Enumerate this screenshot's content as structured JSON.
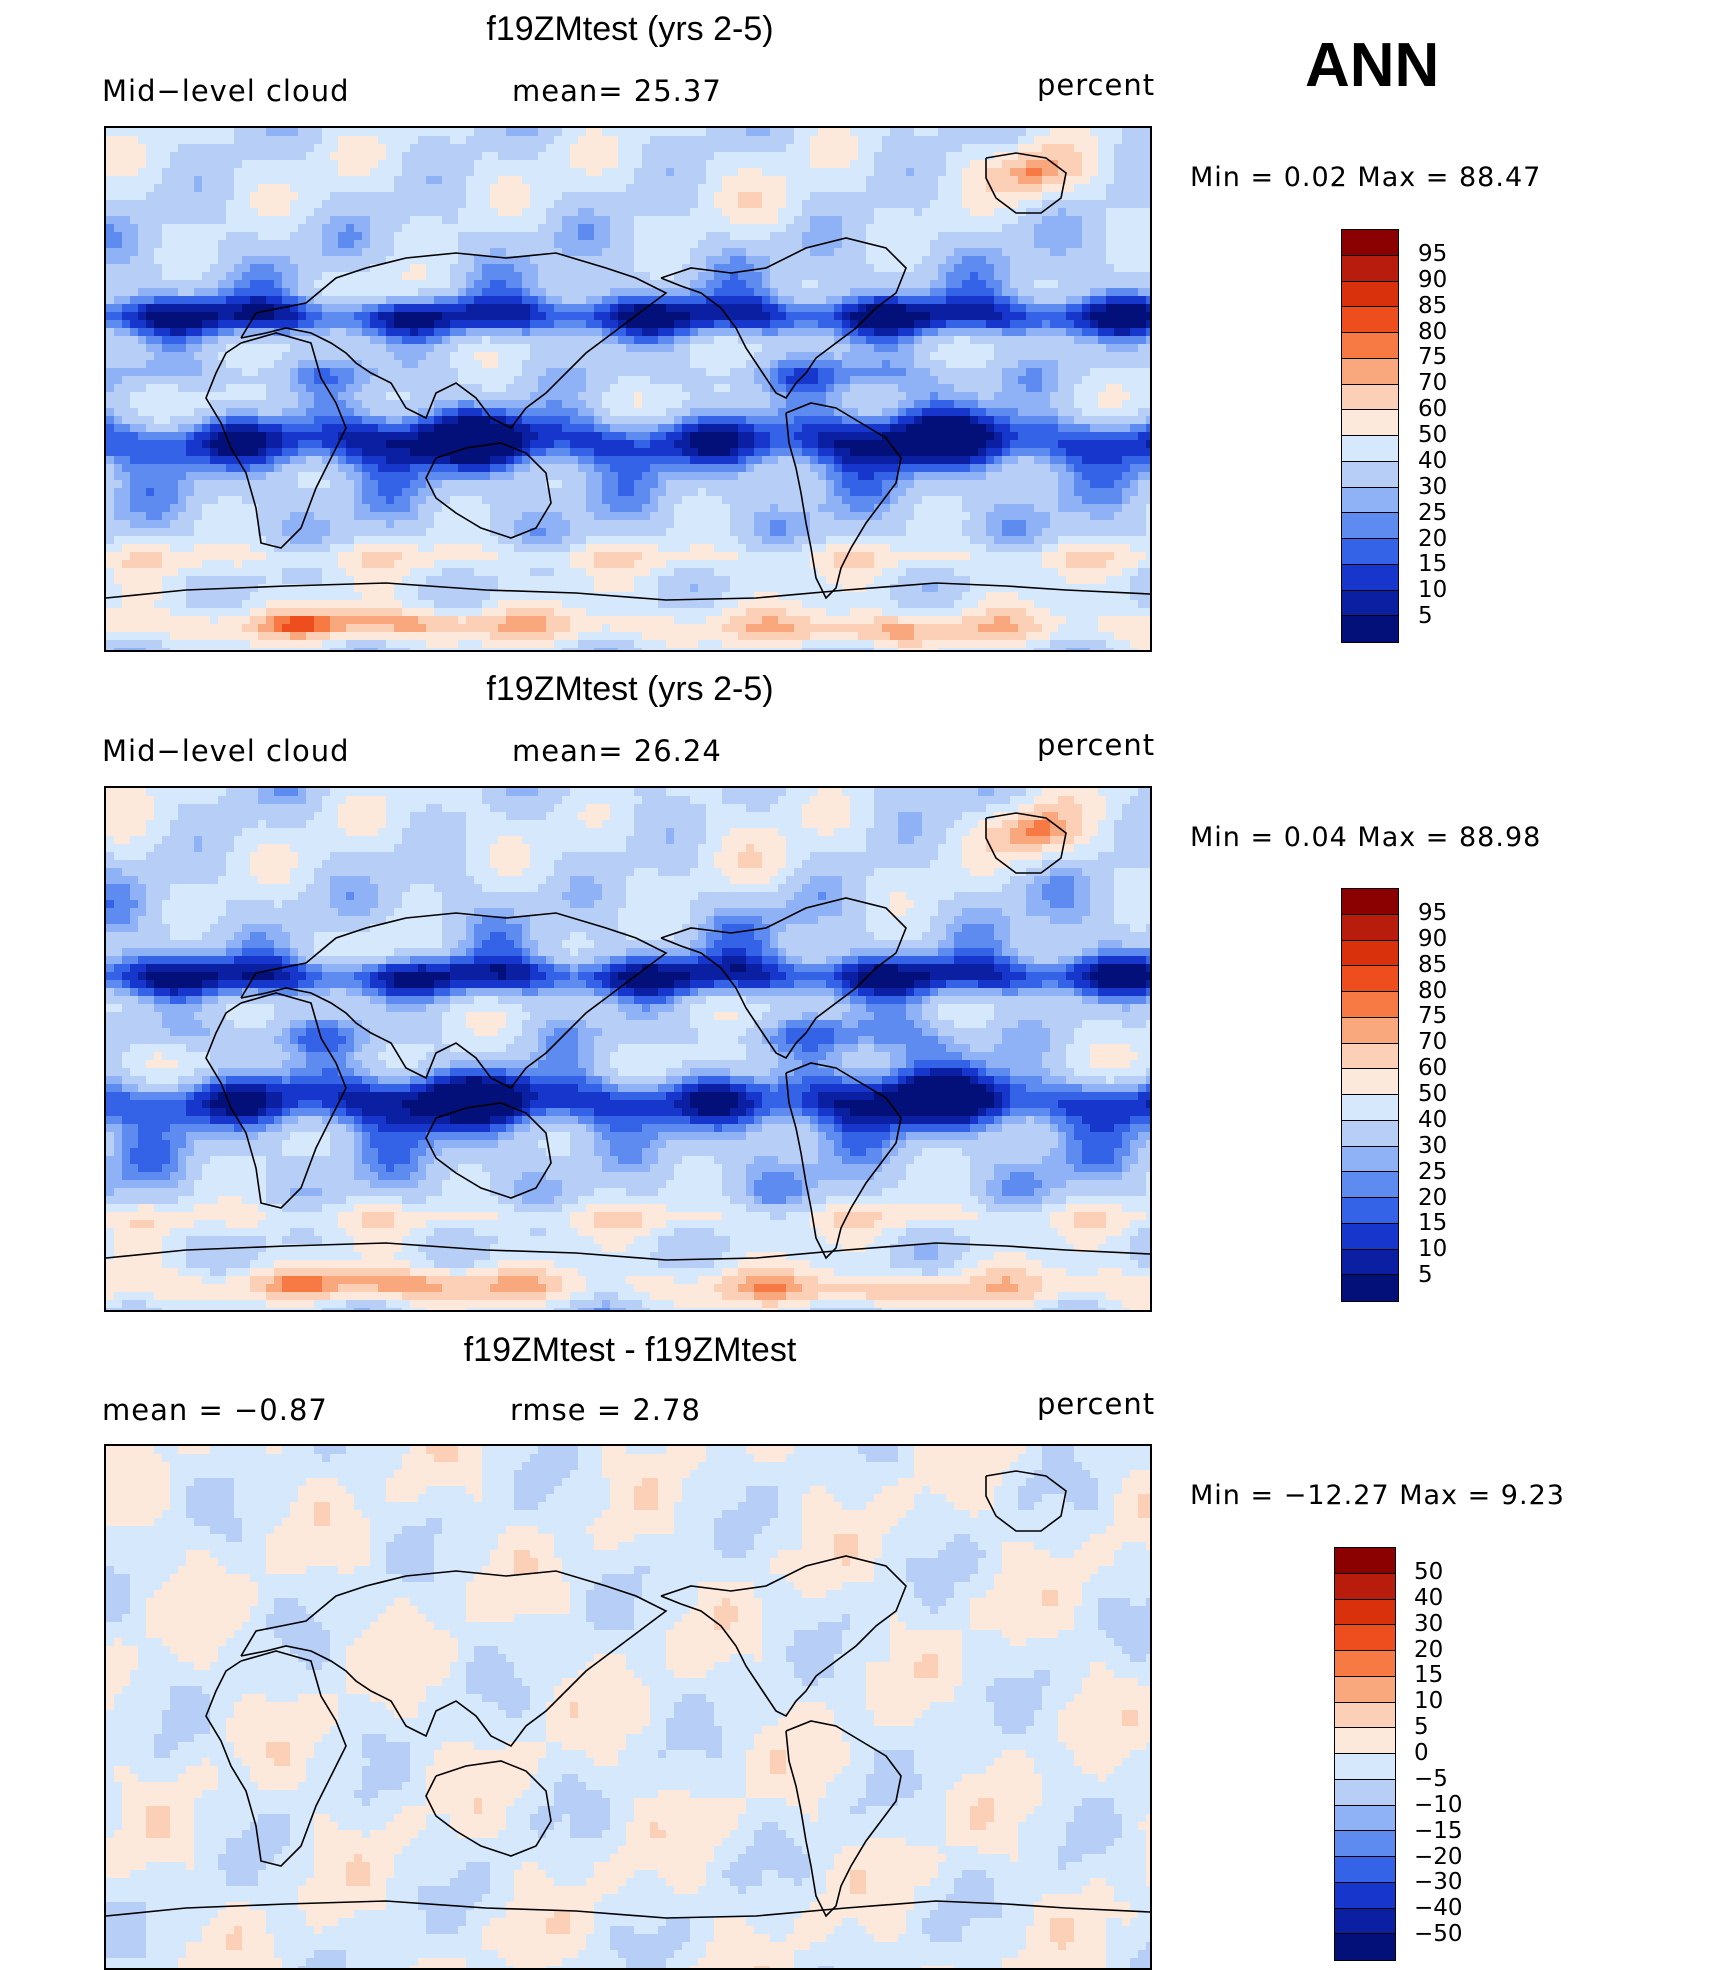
{
  "season": "ANN",
  "panels": [
    {
      "title": "f19ZMtest (yrs 2-5)",
      "left_label": "Mid−level  cloud",
      "center_label": "mean=   25.37",
      "right_label": "percent",
      "minmax": "Min  =      0.02  Max  =     88.47",
      "kind": "field"
    },
    {
      "title": "f19ZMtest (yrs 2-5)",
      "left_label": "Mid−level  cloud",
      "center_label": "mean=   26.24",
      "right_label": "percent",
      "minmax": "Min  =      0.04  Max  =     88.98",
      "kind": "field"
    },
    {
      "title": "f19ZMtest - f19ZMtest",
      "left_label": "mean  =    −0.87",
      "center_label": "rmse  =     2.78",
      "right_label": "percent",
      "minmax": "Min  =  −12.27  Max  =      9.23",
      "kind": "diff"
    }
  ],
  "colorbars": {
    "field": {
      "levels": [
        "95",
        "90",
        "85",
        "80",
        "75",
        "70",
        "60",
        "50",
        "40",
        "30",
        "25",
        "20",
        "15",
        "10",
        "5"
      ],
      "colors": [
        "#8b0000",
        "#b71c0c",
        "#d8310c",
        "#ee4d1e",
        "#f77a45",
        "#f9a77c",
        "#fbd0b6",
        "#fde9dc",
        "#d6e8fb",
        "#b7cff7",
        "#8eb2f5",
        "#5e8bf0",
        "#3463e8",
        "#1737cc",
        "#0a1fa2",
        "#03107a"
      ]
    },
    "diff": {
      "levels": [
        "50",
        "40",
        "30",
        "20",
        "15",
        "10",
        "5",
        "0",
        "−5",
        "−10",
        "−15",
        "−20",
        "−30",
        "−40",
        "−50"
      ],
      "colors": [
        "#8b0000",
        "#b71c0c",
        "#d8310c",
        "#ee4d1e",
        "#f77a45",
        "#f9a77c",
        "#fbd0b6",
        "#fde9dc",
        "#d6e8fb",
        "#b7cff7",
        "#8eb2f5",
        "#5e8bf0",
        "#3463e8",
        "#1737cc",
        "#0a1fa2",
        "#03107a"
      ]
    }
  },
  "chart_data": [
    {
      "type": "heatmap",
      "title": "f19ZMtest (yrs 2-5)",
      "variable": "Mid-level cloud",
      "units": "percent",
      "mean": 25.37,
      "min": 0.02,
      "max": 88.47,
      "contour_levels": [
        5,
        10,
        15,
        20,
        25,
        30,
        40,
        50,
        60,
        70,
        75,
        80,
        85,
        90,
        95
      ]
    },
    {
      "type": "heatmap",
      "title": "f19ZMtest (yrs 2-5)",
      "variable": "Mid-level cloud",
      "units": "percent",
      "mean": 26.24,
      "min": 0.04,
      "max": 88.98,
      "contour_levels": [
        5,
        10,
        15,
        20,
        25,
        30,
        40,
        50,
        60,
        70,
        75,
        80,
        85,
        90,
        95
      ]
    },
    {
      "type": "heatmap",
      "title": "f19ZMtest - f19ZMtest",
      "units": "percent",
      "mean": -0.87,
      "rmse": 2.78,
      "min": -12.27,
      "max": 9.23,
      "contour_levels": [
        -50,
        -40,
        -30,
        -20,
        -15,
        -10,
        -5,
        0,
        5,
        10,
        15,
        20,
        30,
        40,
        50
      ]
    }
  ]
}
